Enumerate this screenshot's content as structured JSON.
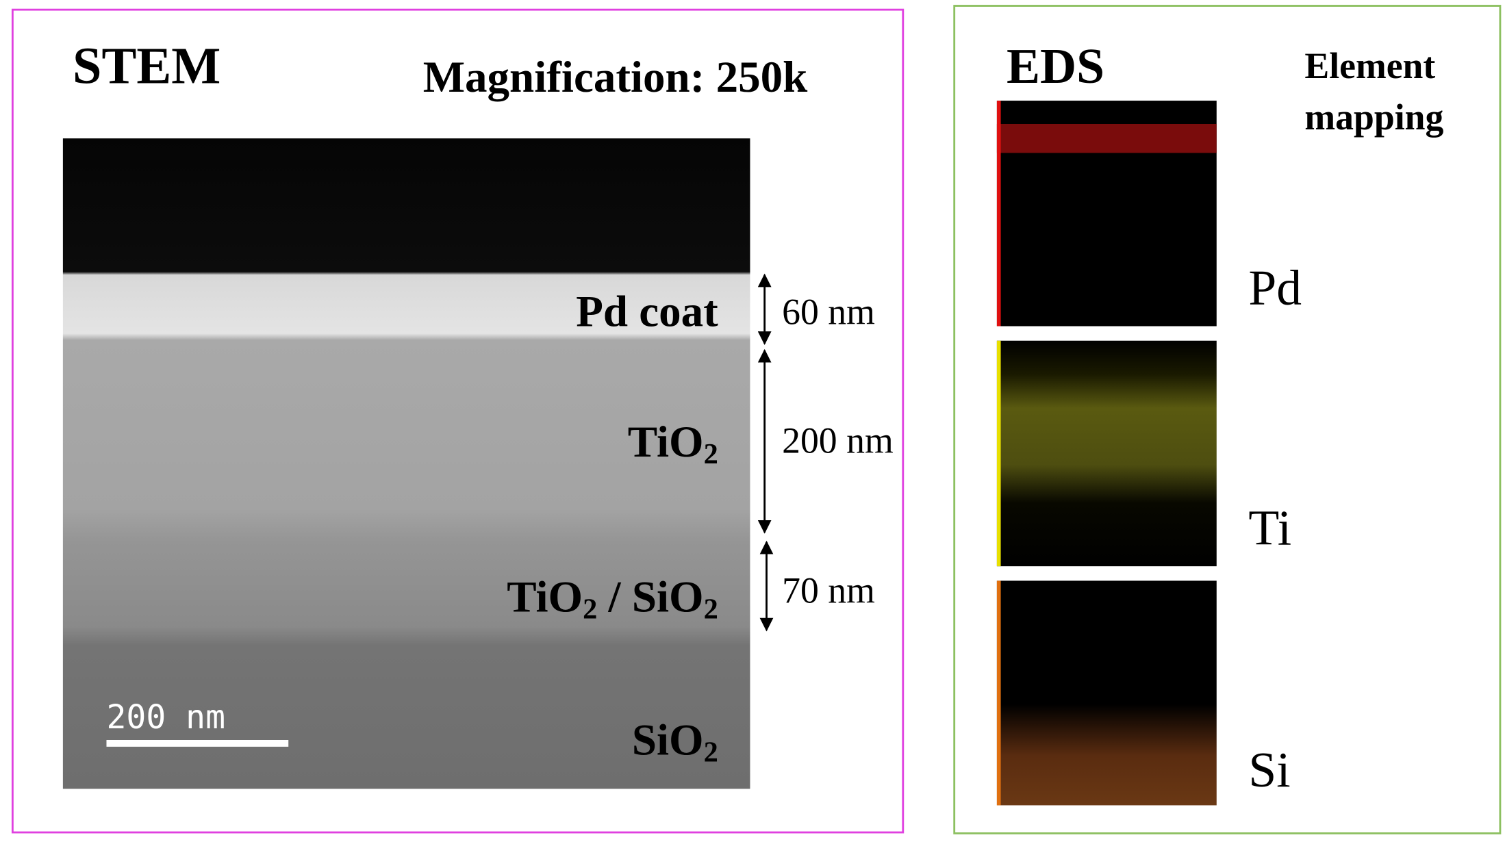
{
  "stem": {
    "title": "STEM",
    "magnification": "Magnification: 250k",
    "scale_bar": "200 nm",
    "layers": [
      {
        "label": [
          "Pd coat"
        ],
        "thickness": "60 nm"
      },
      {
        "label": [
          "TiO",
          "2"
        ],
        "thickness": "200 nm"
      },
      {
        "label": [
          "TiO",
          "2",
          " / SiO",
          "2"
        ],
        "thickness": "70 nm"
      },
      {
        "label": [
          "SiO",
          "2"
        ]
      }
    ]
  },
  "eds": {
    "title": "EDS",
    "subtitle": [
      "Element",
      "mapping"
    ],
    "elements": [
      "Pd",
      "Ti",
      "Si"
    ]
  }
}
